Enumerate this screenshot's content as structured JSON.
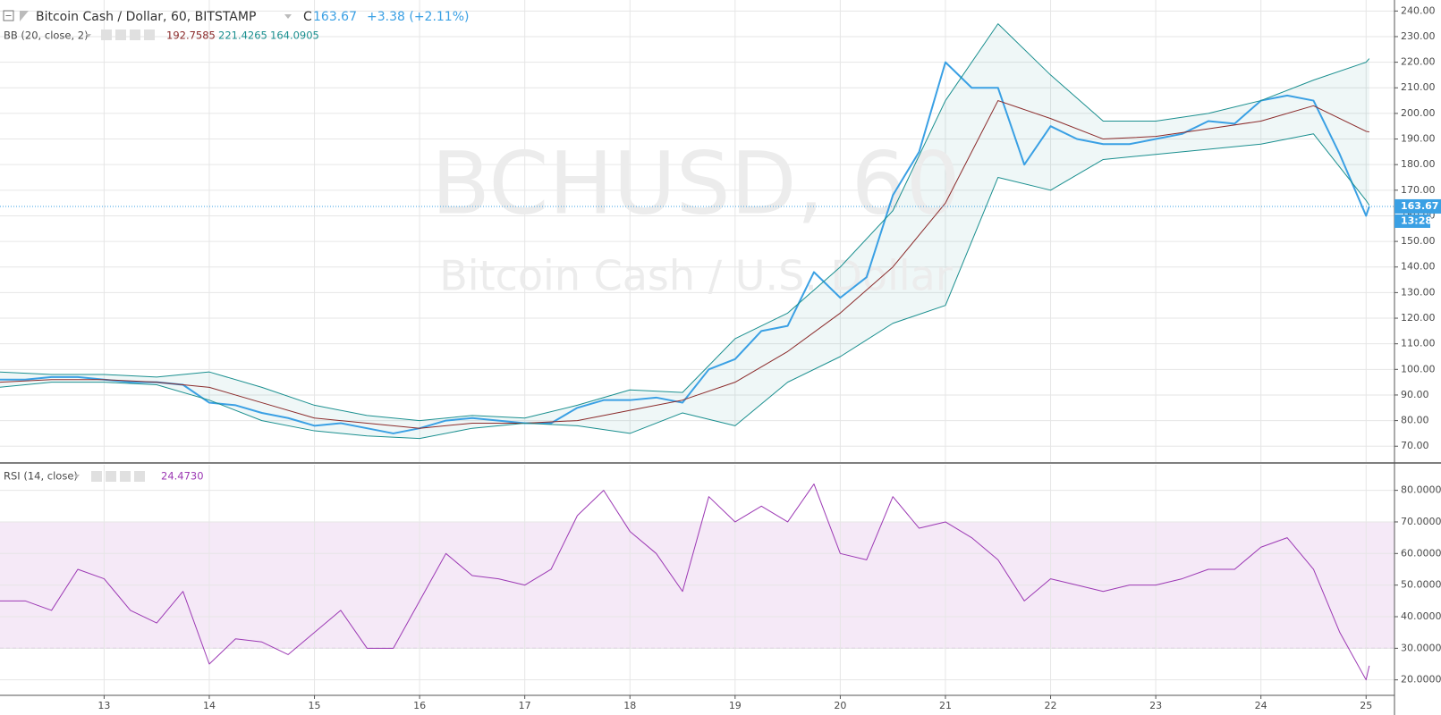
{
  "header": {
    "symbol": "Bitcoin Cash / Dollar, 60, BITSTAMP",
    "close_prefix": "C",
    "close": "163.67",
    "change": "+3.38 (+2.11%)",
    "bb_label": "BB (20, close, 2)",
    "bb_basis": "192.7585",
    "bb_upper": "221.4265",
    "bb_lower": "164.0905",
    "rsi_label": "RSI (14, close)",
    "rsi_value": "24.4730",
    "countdown": "13:28",
    "watermark_symbol": "BCHUSD, 60",
    "watermark_name": "Bitcoin Cash / U.S. Dollar"
  },
  "chart_data": [
    {
      "type": "line",
      "grid": true,
      "xlim": [
        12.01,
        25.27
      ],
      "xticks": [
        13,
        14,
        15,
        16,
        17,
        18,
        19,
        20,
        21,
        22,
        23,
        24,
        25
      ],
      "ylim": [
        63.8,
        244.3
      ],
      "yticks": [
        {
          "value": 70,
          "label": "70.00"
        },
        {
          "value": 80,
          "label": "80.00"
        },
        {
          "value": 90,
          "label": "90.00"
        },
        {
          "value": 100,
          "label": "100.00"
        },
        {
          "value": 110,
          "label": "110.00"
        },
        {
          "value": 120,
          "label": "120.00"
        },
        {
          "value": 130,
          "label": "130.00"
        },
        {
          "value": 140,
          "label": "140.00"
        },
        {
          "value": 150,
          "label": "150.00"
        },
        {
          "value": 160,
          "label": "160.00"
        },
        {
          "value": 170,
          "label": "170.00"
        },
        {
          "value": 180,
          "label": "180.00"
        },
        {
          "value": 190,
          "label": "190.00"
        },
        {
          "value": 200,
          "label": "200.00"
        },
        {
          "value": 210,
          "label": "210.00"
        },
        {
          "value": 220,
          "label": "220.00"
        },
        {
          "value": 230,
          "label": "230.00"
        },
        {
          "value": 240,
          "label": "240.00"
        }
      ],
      "fill_between": [
        2,
        3
      ],
      "fill_color": "rgba(26,143,143,0.07)",
      "last_line": true,
      "series": [
        {
          "name": "price",
          "color": "#3aa0e4",
          "width": 2,
          "x": [
            12,
            12.25,
            12.5,
            12.75,
            13,
            13.25,
            13.5,
            13.75,
            14,
            14.25,
            14.5,
            14.75,
            15,
            15.25,
            15.5,
            15.75,
            16,
            16.25,
            16.5,
            16.75,
            17,
            17.25,
            17.5,
            17.75,
            18,
            18.25,
            18.5,
            18.75,
            19,
            19.25,
            19.5,
            19.75,
            20,
            20.25,
            20.5,
            20.75,
            21,
            21.25,
            21.5,
            21.75,
            22,
            22.25,
            22.5,
            22.75,
            23,
            23.25,
            23.5,
            23.75,
            24,
            24.25,
            24.5,
            24.75,
            25,
            25.03
          ],
          "values": [
            96,
            96,
            97,
            97,
            96,
            95,
            95,
            94,
            87,
            86,
            83,
            81,
            78,
            79,
            77,
            75,
            77,
            80,
            81,
            80,
            79,
            79,
            85,
            88,
            88,
            89,
            87,
            100,
            104,
            115,
            117,
            138,
            128,
            136,
            168,
            185,
            220,
            210,
            210,
            180,
            195,
            190,
            188,
            188,
            190,
            192,
            197,
            196,
            205,
            207,
            205,
            184,
            160,
            163.67
          ]
        },
        {
          "name": "basis",
          "color": "#8b2b2b",
          "width": 1,
          "x": [
            12,
            12.5,
            13,
            13.5,
            14,
            14.5,
            15,
            15.5,
            16,
            16.5,
            17,
            17.5,
            18,
            18.5,
            19,
            19.5,
            20,
            20.5,
            21,
            21.5,
            22,
            22.5,
            23,
            23.5,
            24,
            24.5,
            25,
            25.03
          ],
          "values": [
            95,
            96,
            96,
            95,
            93,
            87,
            81,
            79,
            77,
            79,
            79,
            80,
            84,
            88,
            95,
            107,
            122,
            140,
            165,
            205,
            198,
            190,
            191,
            194,
            197,
            203,
            193,
            192.7585
          ]
        },
        {
          "name": "upper",
          "color": "#1a8f8f",
          "width": 1,
          "x": [
            12,
            12.5,
            13,
            13.5,
            14,
            14.5,
            15,
            15.5,
            16,
            16.5,
            17,
            17.5,
            18,
            18.5,
            19,
            19.5,
            20,
            20.5,
            21,
            21.5,
            22,
            22.5,
            23,
            23.5,
            24,
            24.5,
            25,
            25.03
          ],
          "values": [
            99,
            98,
            98,
            97,
            99,
            93,
            86,
            82,
            80,
            82,
            81,
            86,
            92,
            91,
            112,
            122,
            140,
            162,
            205,
            235,
            215,
            197,
            197,
            200,
            205,
            213,
            220,
            221.4265
          ]
        },
        {
          "name": "lower",
          "color": "#1a8f8f",
          "width": 1,
          "x": [
            12,
            12.5,
            13,
            13.5,
            14,
            14.5,
            15,
            15.5,
            16,
            16.5,
            17,
            17.5,
            18,
            18.5,
            19,
            19.5,
            20,
            20.5,
            21,
            21.5,
            22,
            22.5,
            23,
            23.5,
            24,
            24.5,
            25,
            25.03
          ],
          "values": [
            93,
            95,
            95,
            94,
            88,
            80,
            76,
            74,
            73,
            77,
            79,
            78,
            75,
            83,
            78,
            95,
            105,
            118,
            125,
            175,
            170,
            182,
            184,
            186,
            188,
            192,
            166,
            164.0905
          ]
        }
      ]
    },
    {
      "type": "line",
      "grid": true,
      "xlim": [
        12.01,
        25.27
      ],
      "xticks": [
        13,
        14,
        15,
        16,
        17,
        18,
        19,
        20,
        21,
        22,
        23,
        24,
        25
      ],
      "ylim": [
        15.1,
        88.1
      ],
      "yticks": [
        {
          "value": 20,
          "label": "20.0000"
        },
        {
          "value": 30,
          "label": "30.0000"
        },
        {
          "value": 40,
          "label": "40.0000"
        },
        {
          "value": 50,
          "label": "50.0000"
        },
        {
          "value": 60,
          "label": "60.0000"
        },
        {
          "value": 70,
          "label": "70.0000"
        },
        {
          "value": 80,
          "label": "80.0000"
        }
      ],
      "band": [
        30,
        70
      ],
      "band_color": "rgba(156,39,176,0.1)",
      "series": [
        {
          "name": "rsi",
          "color": "#9c39b4",
          "width": 1,
          "x": [
            12,
            12.25,
            12.5,
            12.75,
            13,
            13.25,
            13.5,
            13.75,
            14,
            14.25,
            14.5,
            14.75,
            15,
            15.25,
            15.5,
            15.75,
            16,
            16.25,
            16.5,
            16.75,
            17,
            17.25,
            17.5,
            17.75,
            18,
            18.25,
            18.5,
            18.75,
            19,
            19.25,
            19.5,
            19.75,
            20,
            20.25,
            20.5,
            20.75,
            21,
            21.25,
            21.5,
            21.75,
            22,
            22.25,
            22.5,
            22.75,
            23,
            23.25,
            23.5,
            23.75,
            24,
            24.25,
            24.5,
            24.75,
            25,
            25.03
          ],
          "values": [
            45,
            45,
            42,
            55,
            52,
            42,
            38,
            48,
            25,
            33,
            32,
            28,
            35,
            42,
            30,
            30,
            45,
            60,
            53,
            52,
            50,
            55,
            72,
            80,
            67,
            60,
            48,
            78,
            70,
            75,
            70,
            82,
            60,
            58,
            78,
            68,
            70,
            65,
            58,
            45,
            52,
            50,
            48,
            50,
            50,
            52,
            55,
            55,
            62,
            65,
            55,
            35,
            20,
            24.473
          ]
        }
      ]
    }
  ]
}
